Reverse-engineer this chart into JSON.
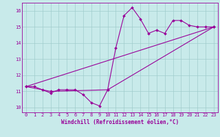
{
  "title": "",
  "xlabel": "Windchill (Refroidissement éolien,°C)",
  "bg_color": "#c8eaea",
  "line_color": "#990099",
  "grid_color": "#a0cccc",
  "x_min": -0.5,
  "x_max": 23.5,
  "y_min": 9.7,
  "y_max": 16.5,
  "series1_x": [
    0,
    1,
    2,
    3,
    4,
    5,
    6,
    7,
    8,
    9,
    10,
    11,
    12,
    13,
    14,
    15,
    16,
    17,
    18,
    19,
    20,
    21,
    22,
    23
  ],
  "series1_y": [
    11.3,
    11.3,
    11.1,
    10.9,
    11.1,
    11.1,
    11.1,
    10.8,
    10.3,
    10.1,
    11.1,
    13.7,
    15.7,
    16.2,
    15.5,
    14.6,
    14.8,
    14.6,
    15.4,
    15.4,
    15.1,
    15.0,
    15.0,
    15.0
  ],
  "series2_x": [
    0,
    3,
    10,
    23
  ],
  "series2_y": [
    11.3,
    11.0,
    11.1,
    15.0
  ],
  "series3_x": [
    0,
    23
  ],
  "series3_y": [
    11.3,
    15.0
  ],
  "x_ticks": [
    0,
    1,
    2,
    3,
    4,
    5,
    6,
    7,
    8,
    9,
    10,
    11,
    12,
    13,
    14,
    15,
    16,
    17,
    18,
    19,
    20,
    21,
    22,
    23
  ],
  "y_ticks": [
    10,
    11,
    12,
    13,
    14,
    15,
    16
  ],
  "tick_fontsize": 5.0,
  "xlabel_fontsize": 5.5,
  "marker_size": 2.0,
  "line_width": 0.8
}
